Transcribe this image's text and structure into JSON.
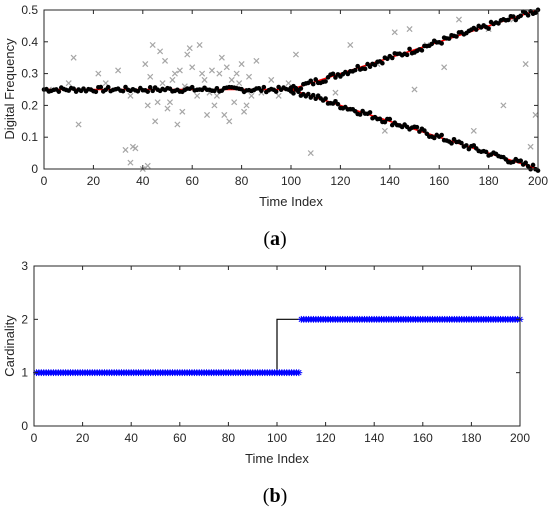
{
  "chart_data": [
    {
      "id": "a",
      "type": "scatter",
      "caption": {
        "open": "(",
        "letter": "a",
        "close": ")"
      },
      "xlabel": "Time Index",
      "ylabel": "Digital Frequency",
      "xlim": [
        0,
        200
      ],
      "ylim": [
        0,
        0.5
      ],
      "xticks": [
        0,
        20,
        40,
        60,
        80,
        100,
        120,
        140,
        160,
        180,
        200
      ],
      "yticks": [
        0,
        0.1,
        0.2,
        0.3,
        0.4,
        0.5
      ],
      "colors": {
        "estimates": "#000000",
        "truth": "#ff0000",
        "clutter": "#a6a6a6"
      },
      "series": [
        {
          "role": "clutter",
          "marker": "x",
          "points": [
            [
              2,
              0.25
            ],
            [
              10,
              0.27
            ],
            [
              12,
              0.35
            ],
            [
              14,
              0.14
            ],
            [
              22,
              0.3
            ],
            [
              25,
              0.27
            ],
            [
              30,
              0.31
            ],
            [
              33,
              0.06
            ],
            [
              35,
              0.02
            ],
            [
              35,
              0.23
            ],
            [
              36,
              0.07
            ],
            [
              37,
              0.065
            ],
            [
              40,
              0.0
            ],
            [
              42,
              0.01
            ],
            [
              41,
              0.33
            ],
            [
              42,
              0.2
            ],
            [
              43,
              0.29
            ],
            [
              44,
              0.39
            ],
            [
              45,
              0.15
            ],
            [
              46,
              0.21
            ],
            [
              47,
              0.37
            ],
            [
              48,
              0.27
            ],
            [
              49,
              0.34
            ],
            [
              50,
              0.19
            ],
            [
              51,
              0.21
            ],
            [
              52,
              0.28
            ],
            [
              53,
              0.3
            ],
            [
              54,
              0.14
            ],
            [
              55,
              0.31
            ],
            [
              56,
              0.18
            ],
            [
              57,
              0.26
            ],
            [
              58,
              0.36
            ],
            [
              59,
              0.38
            ],
            [
              60,
              0.32
            ],
            [
              62,
              0.23
            ],
            [
              63,
              0.39
            ],
            [
              64,
              0.3
            ],
            [
              65,
              0.28
            ],
            [
              66,
              0.17
            ],
            [
              67,
              0.24
            ],
            [
              68,
              0.31
            ],
            [
              69,
              0.2
            ],
            [
              70,
              0.23
            ],
            [
              71,
              0.3
            ],
            [
              72,
              0.35
            ],
            [
              73,
              0.17
            ],
            [
              74,
              0.32
            ],
            [
              75,
              0.15
            ],
            [
              76,
              0.28
            ],
            [
              77,
              0.21
            ],
            [
              78,
              0.3
            ],
            [
              79,
              0.27
            ],
            [
              80,
              0.33
            ],
            [
              81,
              0.18
            ],
            [
              82,
              0.2
            ],
            [
              83,
              0.29
            ],
            [
              84,
              0.23
            ],
            [
              86,
              0.34
            ],
            [
              88,
              0.24
            ],
            [
              92,
              0.28
            ],
            [
              95,
              0.23
            ],
            [
              99,
              0.27
            ],
            [
              102,
              0.36
            ],
            [
              108,
              0.05
            ],
            [
              118,
              0.24
            ],
            [
              124,
              0.39
            ],
            [
              135,
              0.33
            ],
            [
              138,
              0.12
            ],
            [
              142,
              0.43
            ],
            [
              148,
              0.44
            ],
            [
              150,
              0.25
            ],
            [
              155,
              0.39
            ],
            [
              162,
              0.32
            ],
            [
              168,
              0.47
            ],
            [
              174,
              0.12
            ],
            [
              180,
              0.44
            ],
            [
              186,
              0.2
            ],
            [
              190,
              0.47
            ],
            [
              195,
              0.33
            ],
            [
              197,
              0.07
            ],
            [
              199,
              0.17
            ]
          ]
        }
      ],
      "estimate_tracks": [
        {
          "role": "estimates",
          "from": [
            0,
            0.25
          ],
          "to": [
            100,
            0.25
          ],
          "noise": 0.008
        },
        {
          "role": "estimates",
          "from": [
            100,
            0.25
          ],
          "to": [
            200,
            0.5
          ],
          "noise": 0.01
        },
        {
          "role": "estimates",
          "from": [
            100,
            0.25
          ],
          "to": [
            200,
            0.0
          ],
          "noise": 0.01
        }
      ],
      "true_lines": [
        {
          "role": "truth",
          "x": [
            0,
            100
          ],
          "y": [
            0.25,
            0.25
          ]
        },
        {
          "role": "truth",
          "x": [
            100,
            200
          ],
          "y": [
            0.25,
            0.5
          ]
        },
        {
          "role": "truth",
          "x": [
            100,
            200
          ],
          "y": [
            0.25,
            0.0
          ]
        }
      ]
    },
    {
      "id": "b",
      "type": "line",
      "caption": {
        "open": "(",
        "letter": "b",
        "close": ")"
      },
      "xlabel": "Time Index",
      "ylabel": "Cardinality",
      "xlim": [
        0,
        200
      ],
      "ylim": [
        0,
        3
      ],
      "xticks": [
        0,
        20,
        40,
        60,
        80,
        100,
        120,
        140,
        160,
        180,
        200
      ],
      "yticks": [
        0,
        1,
        2,
        3
      ],
      "colors": {
        "true": "#000000",
        "estimated": "#0000ff"
      },
      "series": [
        {
          "role": "true",
          "x": [
            0,
            100,
            100,
            200
          ],
          "y": [
            1,
            1,
            2,
            2
          ]
        },
        {
          "role": "estimated",
          "marker": "*",
          "segments": [
            {
              "x_from": 1,
              "x_to": 109,
              "y": 1
            },
            {
              "x_from": 110,
              "x_to": 200,
              "y": 2
            }
          ]
        }
      ]
    }
  ]
}
